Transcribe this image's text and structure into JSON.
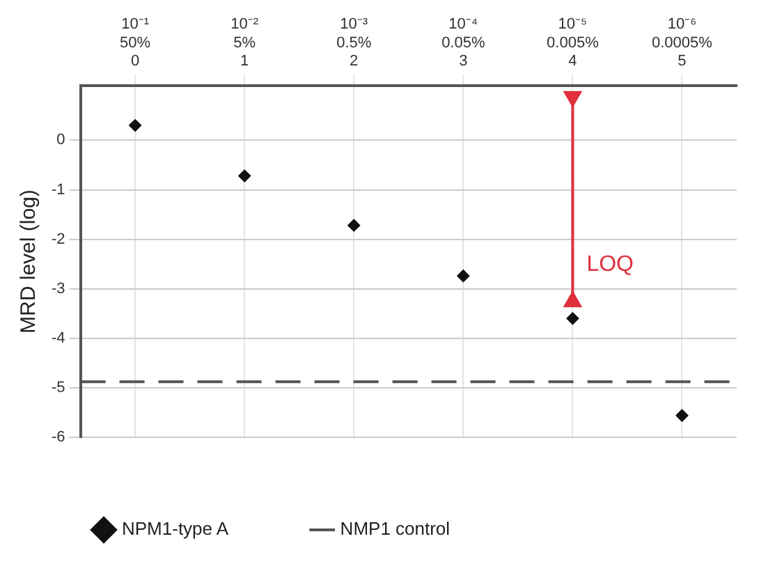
{
  "chart_data": {
    "type": "scatter",
    "ylabel": "MRD level (log)",
    "categories": [
      "10⁻¹\n50%\n0",
      "10⁻²\n5%\n1",
      "10⁻³\n0.5%\n2",
      "10⁻⁴\n0.05%\n3",
      "10⁻⁵\n0.005%\n4",
      "10⁻⁶\n0.0005%\n5"
    ],
    "ylim": [
      -6,
      1.1
    ],
    "yticks": [
      -6,
      -5,
      -4,
      -3,
      -2,
      -1,
      0
    ],
    "grid": true,
    "legend": "bottom",
    "marker": "diamond",
    "series": [
      {
        "name": "NPM1-type A",
        "color": "#111111",
        "values": [
          0.3,
          -0.72,
          -1.72,
          -2.74,
          -3.6,
          -5.56
        ]
      },
      {
        "type": "line",
        "color": "#e0303c",
        "line_style": "solid",
        "marker": "triangle",
        "x": [
          "10⁻⁵\n0.005%\n4",
          "10⁻⁵\n0.005%\n4"
        ],
        "values": [
          0.88,
          -3.26
        ]
      }
    ],
    "ref_lines": [
      {
        "axis": "y",
        "value": -4.88,
        "label": "NMP1 control",
        "color": "#555555",
        "line_style": "dashed"
      }
    ],
    "annotations": [
      "LOQ"
    ]
  }
}
